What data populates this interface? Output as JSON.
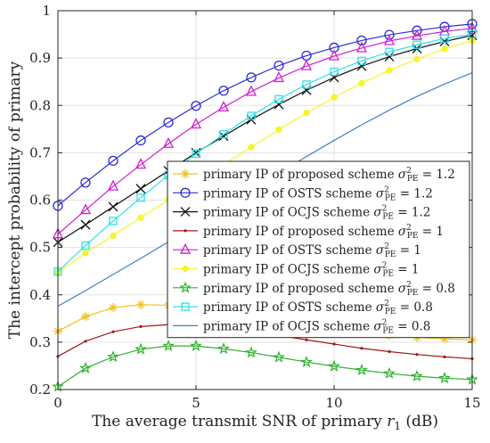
{
  "chart_data": {
    "type": "line",
    "title": "",
    "xlabel": "The average transmit SNR of primary r₁ (dB)",
    "ylabel": "The intercept probability of primary",
    "xlim": [
      0,
      15
    ],
    "ylim": [
      0.2,
      1.0
    ],
    "xticks": [
      "0",
      "5",
      "10",
      "15"
    ],
    "yticks": [
      "0.2",
      "0.3",
      "0.4",
      "0.5",
      "0.6",
      "0.7",
      "0.8",
      "0.9",
      "1"
    ],
    "grid": true,
    "legend_position": "center-right",
    "x": [
      0,
      1,
      2,
      3,
      4,
      5,
      6,
      7,
      8,
      9,
      10,
      11,
      12,
      13,
      14,
      15
    ],
    "series": [
      {
        "name": "primary IP of proposed scheme σ²PE = 1.2",
        "color": "#f0c020",
        "marker": "asterisk",
        "values": [
          0.323,
          0.354,
          0.373,
          0.379,
          0.378,
          0.371,
          0.362,
          0.352,
          0.342,
          0.333,
          0.326,
          0.319,
          0.314,
          0.31,
          0.307,
          0.305
        ]
      },
      {
        "name": "primary IP of OSTS scheme σ²PE = 1.2",
        "color": "#2d2dd6",
        "marker": "circle",
        "values": [
          0.588,
          0.637,
          0.683,
          0.726,
          0.764,
          0.799,
          0.831,
          0.859,
          0.884,
          0.905,
          0.922,
          0.937,
          0.949,
          0.958,
          0.966,
          0.972
        ]
      },
      {
        "name": "primary IP of OCJS scheme σ²PE = 1.2",
        "color": "#111111",
        "marker": "x",
        "values": [
          0.511,
          0.548,
          0.586,
          0.624,
          0.662,
          0.7,
          0.735,
          0.77,
          0.802,
          0.832,
          0.859,
          0.883,
          0.903,
          0.92,
          0.935,
          0.948
        ]
      },
      {
        "name": "primary IP of proposed scheme σ²PE = 1",
        "color": "#a01818",
        "marker": "dot",
        "values": [
          0.27,
          0.302,
          0.322,
          0.333,
          0.337,
          0.336,
          0.331,
          0.323,
          0.314,
          0.305,
          0.296,
          0.287,
          0.28,
          0.274,
          0.269,
          0.265
        ]
      },
      {
        "name": "primary IP of OSTS scheme σ²PE = 1",
        "color": "#d020d0",
        "marker": "triangle",
        "values": [
          0.528,
          0.579,
          0.629,
          0.675,
          0.719,
          0.76,
          0.796,
          0.829,
          0.858,
          0.883,
          0.904,
          0.921,
          0.936,
          0.947,
          0.956,
          0.963
        ]
      },
      {
        "name": "primary IP of OCJS scheme σ²PE = 1",
        "color": "#f5f528",
        "marker": "dot-large",
        "values": [
          0.448,
          0.488,
          0.525,
          0.563,
          0.6,
          0.638,
          0.675,
          0.712,
          0.749,
          0.784,
          0.817,
          0.847,
          0.874,
          0.898,
          0.919,
          0.937
        ]
      },
      {
        "name": "primary IP of proposed scheme σ²PE = 0.8",
        "color": "#30b030",
        "marker": "pentagram",
        "values": [
          0.206,
          0.245,
          0.269,
          0.285,
          0.292,
          0.292,
          0.286,
          0.278,
          0.268,
          0.258,
          0.249,
          0.241,
          0.234,
          0.228,
          0.224,
          0.221
        ]
      },
      {
        "name": "primary IP of OSTS scheme σ²PE = 0.8",
        "color": "#30e0e8",
        "marker": "square",
        "values": [
          0.449,
          0.504,
          0.556,
          0.605,
          0.653,
          0.698,
          0.739,
          0.778,
          0.813,
          0.844,
          0.871,
          0.894,
          0.913,
          0.928,
          0.941,
          0.951
        ]
      },
      {
        "name": "primary IP of OCJS scheme σ²PE = 0.8",
        "color": "#3f7fc8",
        "marker": "none",
        "values": [
          0.376,
          0.409,
          0.443,
          0.477,
          0.512,
          0.548,
          0.584,
          0.621,
          0.657,
          0.692,
          0.726,
          0.759,
          0.79,
          0.819,
          0.845,
          0.869
        ]
      }
    ]
  },
  "legend": {
    "entries": [
      {
        "prefix": "primary IP of proposed scheme ",
        "value": "= 1.2"
      },
      {
        "prefix": "primary IP of OSTS scheme ",
        "value": "= 1.2"
      },
      {
        "prefix": "primary IP of OCJS scheme ",
        "value": "= 1.2"
      },
      {
        "prefix": "primary IP of proposed scheme ",
        "value": "= 1"
      },
      {
        "prefix": "primary IP of OSTS scheme ",
        "value": "= 1"
      },
      {
        "prefix": "primary IP of OCJS scheme ",
        "value": "= 1"
      },
      {
        "prefix": "primary IP of proposed scheme ",
        "value": "= 0.8"
      },
      {
        "prefix": "primary IP of OSTS scheme ",
        "value": "= 0.8"
      },
      {
        "prefix": "primary IP of OCJS scheme ",
        "value": "= 0.8"
      }
    ],
    "sigma_symbol": "σ",
    "sigma_sup": "2",
    "sigma_sub": "PE"
  },
  "axis_text": {
    "xlabel_main": "The average transmit SNR of primary ",
    "xlabel_var": "r",
    "xlabel_sub": "1",
    "xlabel_unit": " (dB)"
  }
}
